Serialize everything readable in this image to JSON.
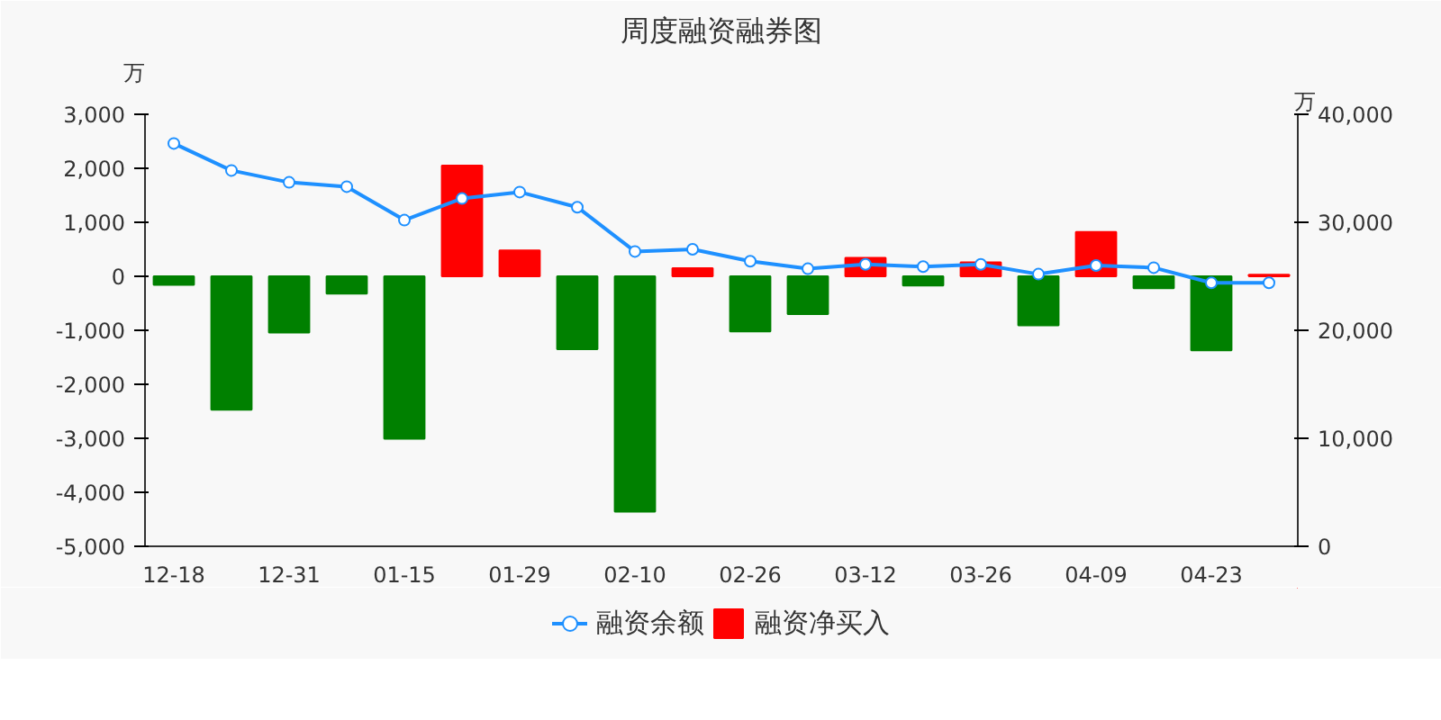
{
  "chart_data": {
    "type": "bar",
    "title": "周度融资融券图",
    "ylabel": "万",
    "y2label": "万",
    "categories": [
      "12-18",
      null,
      "12-31",
      null,
      "01-15",
      null,
      "01-29",
      null,
      "02-10",
      null,
      "02-26",
      null,
      "03-12",
      null,
      "03-26",
      null,
      "04-09",
      null,
      "04-23",
      null
    ],
    "series": [
      {
        "name": "融资余额",
        "type": "line",
        "axis": "y2",
        "color": "#1e90ff",
        "marker": "circle",
        "values": [
          37300,
          34800,
          33700,
          33300,
          30200,
          32200,
          32800,
          31400,
          27300,
          27500,
          26400,
          25700,
          26100,
          25900,
          26100,
          25200,
          26000,
          25800,
          24400,
          24400
        ]
      },
      {
        "name": "融资净买入",
        "color": "#ff0000",
        "colors": [
          "#008000",
          "#008000",
          "#008000",
          "#008000",
          "#008000",
          "#ff0000",
          "#ff0000",
          "#008000",
          "#008000",
          "#ff0000",
          "#008000",
          "#008000",
          "#ff0000",
          "#008000",
          "#ff0000",
          "#008000",
          "#ff0000",
          "#008000",
          "#008000",
          "#ff0000"
        ],
        "values": [
          -160,
          -2470,
          -1040,
          -320,
          -3010,
          2050,
          480,
          -1350,
          -4360,
          150,
          -1020,
          -700,
          340,
          -170,
          260,
          -910,
          820,
          -220,
          -1370,
          30
        ]
      }
    ],
    "ylim": [
      -5000,
      3000
    ],
    "yticks": [
      {
        "value": -5000,
        "label": "-5,000"
      },
      {
        "value": -4000,
        "label": "-4,000"
      },
      {
        "value": -3000,
        "label": "-3,000"
      },
      {
        "value": -2000,
        "label": "-2,000"
      },
      {
        "value": -1000,
        "label": "-1,000"
      },
      0,
      {
        "value": 1000,
        "label": "1,000"
      },
      {
        "value": 2000,
        "label": "2,000"
      },
      {
        "value": 3000,
        "label": "3,000"
      }
    ],
    "y2lim": [
      0,
      40000
    ],
    "y2ticks": [
      0,
      {
        "value": 10000,
        "label": "10,000"
      },
      {
        "value": 20000,
        "label": "20,000"
      },
      {
        "value": 30000,
        "label": "30,000"
      },
      {
        "value": 40000,
        "label": "40,000"
      }
    ],
    "grid": false,
    "legend": "bottom"
  }
}
